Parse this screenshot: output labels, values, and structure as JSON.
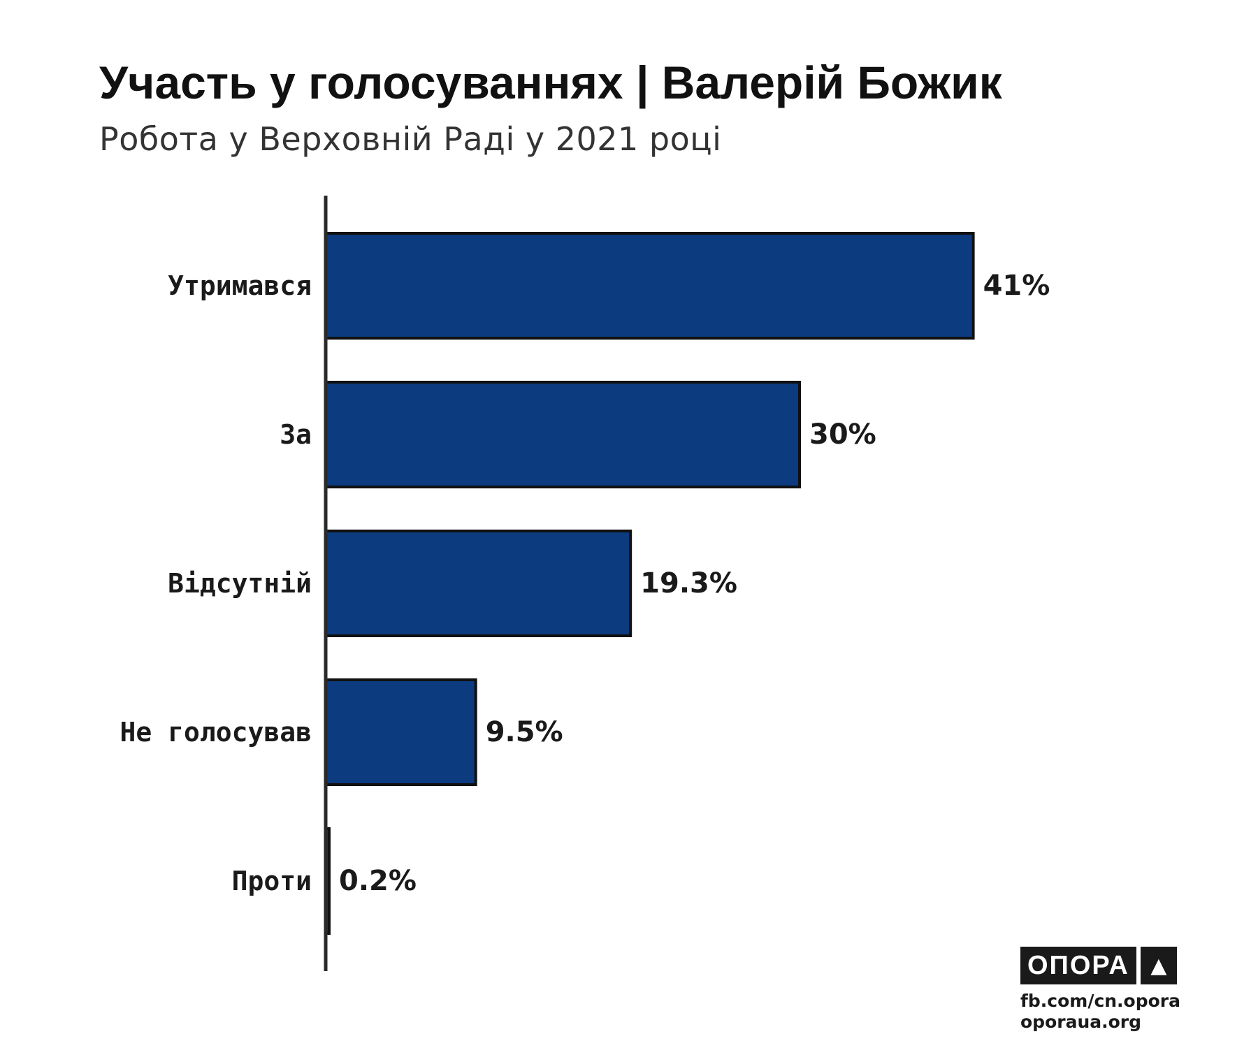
{
  "chart_data": {
    "type": "bar",
    "orientation": "horizontal",
    "title": "Участь у голосуваннях | Валерій Божик",
    "subtitle": "Робота у Верховній Раді у 2021 році",
    "categories": [
      "Утримався",
      "За",
      "Відсутній",
      "Не голосував",
      "Проти"
    ],
    "values": [
      41,
      30,
      19.3,
      9.5,
      0.2
    ],
    "value_labels": [
      "41%",
      "30%",
      "19.3%",
      "9.5%",
      "0.2%"
    ],
    "xlim": [
      0,
      45
    ],
    "grid": false,
    "legend": "none",
    "bar_color": "#0c3b80",
    "bar_outline_color": "#111111"
  },
  "branding": {
    "logo_text": "ОПОРА",
    "logo_icon": "triangle-icon",
    "footer_lines": [
      "fb.com/cn.opora",
      "oporaua.org"
    ]
  }
}
